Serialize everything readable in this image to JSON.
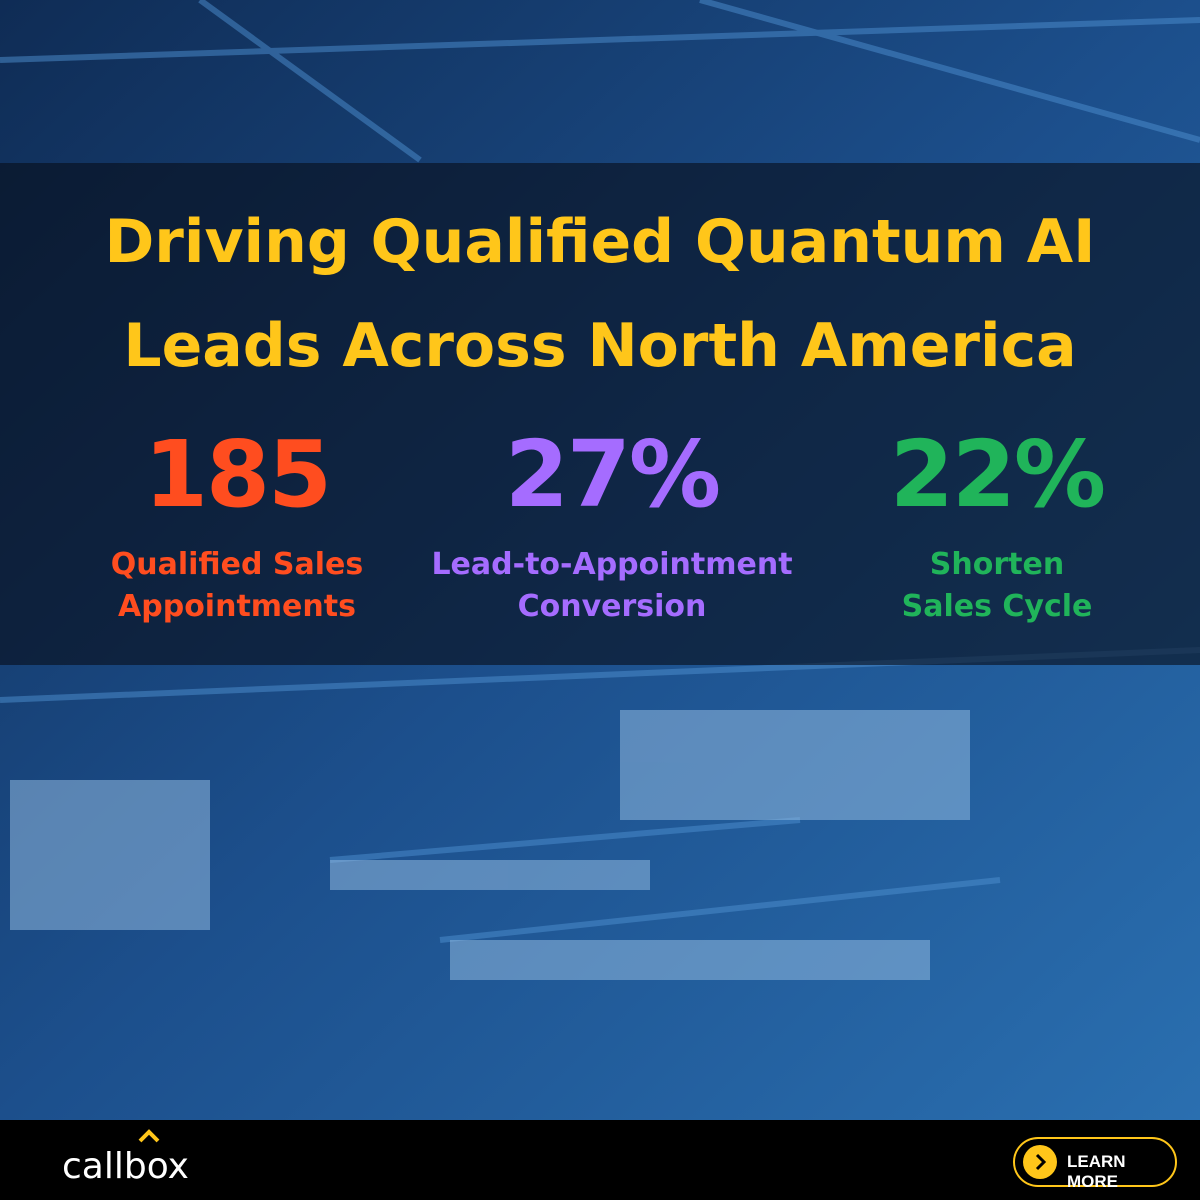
{
  "headline": {
    "lines": [
      "Driving Qualified Quantum AI",
      "Leads Across North America"
    ]
  },
  "stats": [
    {
      "value": "185",
      "label_lines": [
        "Qualified Sales",
        "Appointments"
      ],
      "color": "#ff4d1f"
    },
    {
      "value": "27%",
      "label_lines": [
        "Lead-to-Appointment",
        "Conversion"
      ],
      "color": "#a56cff"
    },
    {
      "value": "22%",
      "label_lines": [
        "Shorten",
        "Sales Cycle"
      ],
      "color": "#20b45a"
    }
  ],
  "footer": {
    "logo": "callbox",
    "button": "LEARN MORE"
  }
}
